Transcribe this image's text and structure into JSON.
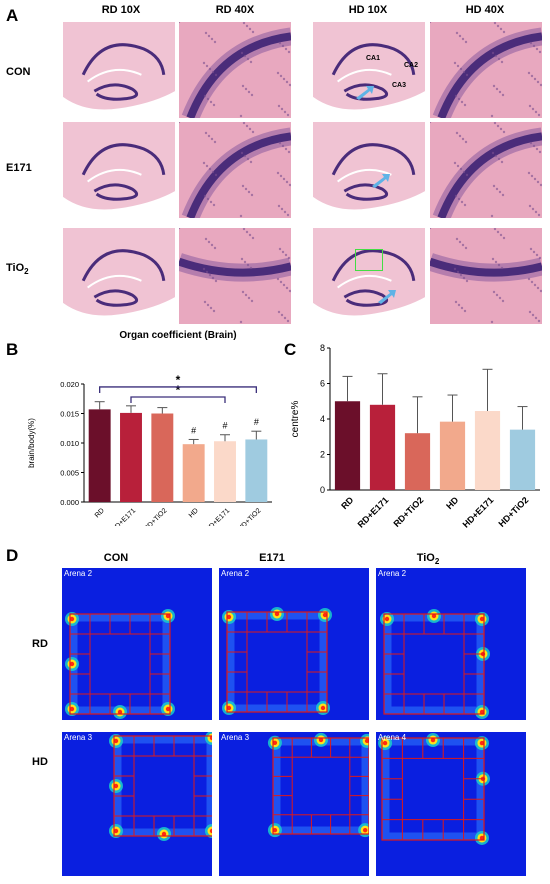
{
  "panel_a": {
    "letter": "A",
    "columns": [
      "RD 10X",
      "RD 40X",
      "HD 10X",
      "HD 40X"
    ],
    "rows": [
      {
        "label": "CON",
        "sub": ""
      },
      {
        "label": "E171",
        "sub": ""
      },
      {
        "label": "TiO",
        "sub": "2"
      }
    ],
    "region_labels": {
      "ca1": "CA1",
      "ca2": "CA2",
      "ca3": "CA3"
    },
    "colors": {
      "tissue": "#e8a8bf",
      "stain": "#4a2c7a",
      "arrow": "#5fb3e6",
      "box": "#44dd44"
    }
  },
  "chart_data": [
    {
      "panel": "B",
      "type": "bar",
      "title": "Organ coefficient (Brain)",
      "ylabel": "brain/body(%)",
      "categories": [
        "RD",
        "RD+E171",
        "RD+TiO2",
        "HD",
        "HD+E171",
        "HD+TiO2"
      ],
      "values": [
        0.0157,
        0.0151,
        0.015,
        0.0098,
        0.0103,
        0.0106
      ],
      "errors": [
        0.0013,
        0.0012,
        0.001,
        0.0008,
        0.0011,
        0.0014
      ],
      "ylim": [
        0,
        0.02
      ],
      "yticks": [
        "0.000",
        "0.005",
        "0.010",
        "0.015",
        "0.020"
      ],
      "colors": [
        "#6b0f2a",
        "#b8203a",
        "#d9675a",
        "#f2a98c",
        "#fbd9c9",
        "#9fcbe0"
      ],
      "annotations": [
        "#",
        "#",
        "#"
      ],
      "significance": [
        {
          "from": "RD+E171",
          "to": "HD+E171",
          "mark": "*"
        },
        {
          "from": "RD",
          "to": "HD+TiO2",
          "mark": "*"
        }
      ]
    },
    {
      "panel": "C",
      "type": "bar",
      "ylabel": "centre%",
      "categories": [
        "RD",
        "RD+E171",
        "RD+TiO2",
        "HD",
        "HD+E171",
        "HD+TiO2"
      ],
      "values": [
        5.0,
        4.8,
        3.2,
        3.85,
        4.45,
        3.4
      ],
      "errors": [
        1.4,
        1.75,
        2.05,
        1.5,
        2.35,
        1.3
      ],
      "ylim": [
        0,
        8
      ],
      "yticks": [
        "0",
        "2",
        "4",
        "6",
        "8"
      ],
      "colors": [
        "#6b0f2a",
        "#b8203a",
        "#d9675a",
        "#f2a98c",
        "#fbd9c9",
        "#9fcbe0"
      ]
    }
  ],
  "panel_b": {
    "letter": "B"
  },
  "panel_c": {
    "letter": "C"
  },
  "panel_d": {
    "letter": "D",
    "columns": [
      {
        "label": "CON",
        "sub": ""
      },
      {
        "label": "E171",
        "sub": ""
      },
      {
        "label": "TiO",
        "sub": "2"
      }
    ],
    "rows": [
      "RD",
      "HD"
    ],
    "arenas": [
      [
        "Arena 2",
        "Arena 2",
        "Arena 2"
      ],
      [
        "Arena 3",
        "Arena 3",
        "Arena 4"
      ]
    ],
    "colors": {
      "background": "#0a1fe0",
      "grid": "#e01818"
    }
  }
}
